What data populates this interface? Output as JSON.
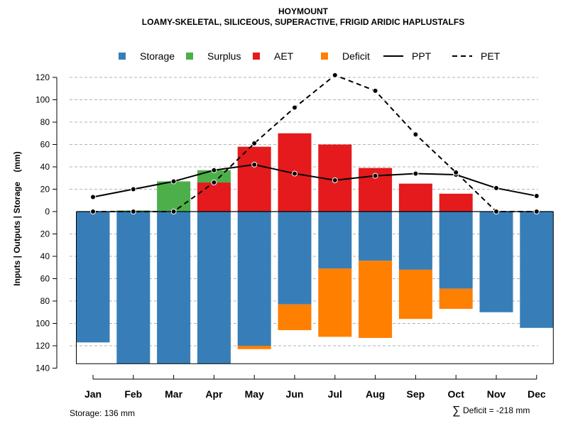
{
  "chart_data": {
    "type": "bar",
    "title": "HOYMOUNT",
    "subtitle": "LOAMY-SKELETAL, SILICEOUS, SUPERACTIVE, FRIGID ARIDIC HAPLUSTALFS",
    "ylabel": "Inputs | Outputs | Storage    (mm)",
    "categories": [
      "Jan",
      "Feb",
      "Mar",
      "Apr",
      "May",
      "Jun",
      "Jul",
      "Aug",
      "Sep",
      "Oct",
      "Nov",
      "Dec"
    ],
    "ylim": [
      -140,
      130
    ],
    "yticks": [
      120,
      100,
      80,
      60,
      40,
      20,
      0,
      -20,
      -40,
      -60,
      -80,
      -100,
      -120,
      -140
    ],
    "ytick_labels": [
      "120",
      "100",
      "80",
      "60",
      "40",
      "20",
      "0",
      "20",
      "40",
      "60",
      "80",
      "100",
      "120",
      "140"
    ],
    "legend": [
      {
        "name": "Storage",
        "kind": "square",
        "color": "#377eb8"
      },
      {
        "name": "Surplus",
        "kind": "square",
        "color": "#4daf4a"
      },
      {
        "name": "AET",
        "kind": "square",
        "color": "#e41a1c"
      },
      {
        "name": "Deficit",
        "kind": "square",
        "color": "#ff7f00"
      },
      {
        "name": "PPT",
        "kind": "solid",
        "color": "#000000"
      },
      {
        "name": "PET",
        "kind": "dashed",
        "color": "#000000"
      }
    ],
    "series": [
      {
        "name": "AET",
        "color": "#e41a1c",
        "values": [
          0,
          0,
          0,
          26,
          58,
          70,
          60,
          39,
          25,
          16,
          0,
          0
        ]
      },
      {
        "name": "Surplus",
        "color": "#4daf4a",
        "values": [
          0,
          1,
          27,
          11,
          0,
          0,
          0,
          0,
          0,
          0,
          0,
          0
        ]
      },
      {
        "name": "Storage",
        "color": "#377eb8",
        "values": [
          117,
          136,
          136,
          136,
          120,
          83,
          51,
          44,
          52,
          69,
          90,
          104
        ]
      },
      {
        "name": "Deficit",
        "color": "#ff7f00",
        "values": [
          0,
          0,
          0,
          0,
          3,
          23,
          61,
          69,
          44,
          18,
          0,
          0
        ]
      },
      {
        "name": "PPT",
        "color": "#000000",
        "values": [
          13,
          20,
          27,
          37,
          42,
          34,
          28,
          32,
          34,
          33,
          21,
          14
        ]
      },
      {
        "name": "PET",
        "color": "#000000",
        "values": [
          0,
          0,
          0,
          26,
          61,
          93,
          122,
          108,
          69,
          35,
          0,
          0
        ]
      }
    ],
    "storage_capacity": 136,
    "footer_left": "Storage: 136 mm",
    "footer_right_symbol": "∑",
    "footer_right": "Deficit = -218 mm",
    "grid": true
  }
}
